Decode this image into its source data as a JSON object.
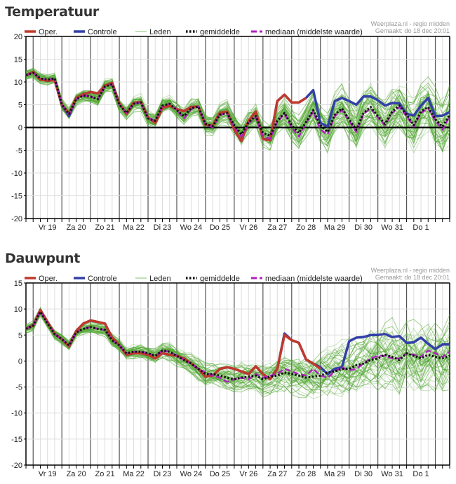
{
  "source": "Weerplaza.nl - regio midden",
  "made": "Gemaakt: do 18 dec 20:01",
  "legend": [
    {
      "key": "oper",
      "label": "Oper.",
      "color": "#c0392b"
    },
    {
      "key": "controle",
      "label": "Controle",
      "color": "#3340a8"
    },
    {
      "key": "leden",
      "label": "Leden",
      "color": "#4ea52f"
    },
    {
      "key": "gemiddelde",
      "label": "gemiddelde",
      "color": "#111111"
    },
    {
      "key": "mediaan",
      "label": "mediaan (middelste waarde)",
      "color": "#b020c0"
    }
  ],
  "chart_data": [
    {
      "type": "line",
      "title": "Temperatuur",
      "xlabel": "",
      "ylabel": "",
      "ylim": [
        -20,
        20
      ],
      "yticks": [
        20,
        15,
        10,
        5,
        0,
        -5,
        -10,
        -15,
        -20
      ],
      "x_step_hours": 6,
      "x_start": "do 18 18:00",
      "day_labels": [
        "Vr 19",
        "Za 20",
        "Zo 21",
        "Ma 22",
        "Di 23",
        "Wo 24",
        "Do 25",
        "Vr 26",
        "Za 27",
        "Zo 28",
        "Ma 29",
        "Di 30",
        "Wo 31",
        "Do 1"
      ],
      "zero_line": true,
      "grid": true,
      "series": [
        {
          "name": "Oper.",
          "key": "oper",
          "values": [
            11.5,
            12.2,
            10.5,
            10.3,
            10.4,
            5.0,
            3.0,
            6.5,
            7.3,
            7.8,
            7.5,
            9.2,
            9.8,
            5.2,
            3.0,
            5.4,
            5.6,
            2.2,
            1.0,
            4.3,
            4.8,
            4.0,
            3.6,
            4.5,
            4.6,
            0.6,
            0.4,
            3.2,
            3.5,
            -0.5,
            -3.0,
            1.5,
            3.5,
            -2.5,
            -2.8,
            5.8,
            7.2,
            5.5,
            5.5,
            6.5,
            null,
            null,
            null,
            null,
            null,
            null,
            null,
            null,
            null,
            null,
            null,
            null,
            null,
            null,
            null,
            null,
            null,
            null,
            null,
            null
          ]
        },
        {
          "name": "Controle",
          "key": "controle",
          "values": [
            11.5,
            12.2,
            10.5,
            10.3,
            10.4,
            5.0,
            2.5,
            6.5,
            7.3,
            7.8,
            7.5,
            9.2,
            9.8,
            5.2,
            3.0,
            5.4,
            5.6,
            2.2,
            1.0,
            4.3,
            4.8,
            4.0,
            3.6,
            4.5,
            4.6,
            0.6,
            0.4,
            3.2,
            3.5,
            -0.5,
            -3.0,
            1.5,
            3.5,
            -2.5,
            -2.8,
            5.8,
            7.2,
            5.5,
            5.5,
            6.5,
            8.2,
            1.0,
            0.2,
            5.8,
            6.5,
            5.8,
            5.0,
            6.8,
            6.8,
            6.0,
            4.8,
            5.4,
            5.3,
            3.0,
            2.6,
            4.8,
            6.5,
            2.5,
            2.6,
            3.4
          ]
        },
        {
          "name": "gemiddelde",
          "key": "gemiddelde",
          "values": [
            11.5,
            12.0,
            10.8,
            10.5,
            10.8,
            5.0,
            3.0,
            6.2,
            7.0,
            6.8,
            6.2,
            9.0,
            9.5,
            5.0,
            3.2,
            5.2,
            5.5,
            2.0,
            1.5,
            4.8,
            5.2,
            3.8,
            2.5,
            4.2,
            4.6,
            0.8,
            0.3,
            2.8,
            3.2,
            0.5,
            -1.5,
            1.2,
            2.5,
            -1.2,
            -1.8,
            1.5,
            3.2,
            0.5,
            -1.2,
            1.2,
            3.8,
            0.5,
            -1.0,
            2.8,
            4.2,
            1.8,
            -0.5,
            3.2,
            4.5,
            2.5,
            0.8,
            3.5,
            4.8,
            2.8,
            0.5,
            3.5,
            4.5,
            1.8,
            0.2,
            2.8
          ]
        },
        {
          "name": "mediaan",
          "key": "mediaan",
          "values": [
            11.5,
            12.0,
            10.8,
            10.5,
            10.8,
            5.0,
            3.0,
            6.2,
            7.0,
            6.8,
            6.2,
            9.0,
            9.5,
            5.0,
            3.2,
            5.2,
            5.5,
            2.0,
            1.5,
            4.8,
            5.2,
            3.8,
            2.0,
            4.0,
            4.6,
            0.8,
            0.0,
            2.8,
            3.0,
            0.2,
            -2.0,
            1.0,
            2.2,
            -1.8,
            -2.5,
            1.2,
            3.0,
            0.0,
            -2.0,
            1.0,
            3.5,
            -0.5,
            -1.5,
            2.5,
            3.8,
            1.5,
            -1.0,
            3.0,
            4.2,
            2.2,
            0.5,
            3.2,
            4.5,
            2.5,
            0.2,
            3.2,
            4.2,
            1.5,
            -0.5,
            2.5
          ]
        }
      ],
      "members": {
        "count": 50,
        "spread_start": 1.2,
        "spread_end": 7.0
      }
    },
    {
      "type": "line",
      "title": "Dauwpunt",
      "xlabel": "",
      "ylabel": "",
      "ylim": [
        -20,
        15
      ],
      "yticks": [
        15,
        10,
        5,
        0,
        -5,
        -10,
        -15,
        -20
      ],
      "x_step_hours": 6,
      "x_start": "do 18 18:00",
      "day_labels": [
        "Vr 19",
        "Za 20",
        "Zo 21",
        "Ma 22",
        "Di 23",
        "Wo 24",
        "Do 25",
        "Vr 26",
        "Za 27",
        "Zo 28",
        "Ma 29",
        "Di 30",
        "Wo 31",
        "Do 1"
      ],
      "zero_line": false,
      "grid": true,
      "series": [
        {
          "name": "Oper.",
          "key": "oper",
          "values": [
            6.2,
            6.8,
            9.8,
            7.5,
            5.2,
            4.2,
            2.8,
            5.8,
            7.2,
            7.8,
            7.5,
            7.2,
            4.5,
            3.0,
            1.2,
            1.5,
            1.5,
            1.2,
            0.5,
            1.5,
            1.2,
            1.0,
            0.5,
            -0.5,
            -1.5,
            -3.0,
            -2.8,
            -1.5,
            -1.2,
            -1.5,
            -2.0,
            -2.5,
            -1.0,
            -2.5,
            -3.5,
            -1.5,
            5.0,
            4.0,
            3.5,
            0.3,
            -0.5,
            -1.5,
            null,
            null,
            null,
            null,
            null,
            null,
            null,
            null,
            null,
            null,
            null,
            null,
            null,
            null,
            null,
            null,
            null,
            null
          ]
        },
        {
          "name": "Controle",
          "key": "controle",
          "values": [
            6.2,
            6.8,
            9.8,
            7.5,
            5.2,
            4.2,
            2.8,
            5.8,
            7.2,
            7.8,
            7.5,
            7.2,
            4.5,
            3.0,
            1.2,
            1.5,
            1.5,
            1.2,
            0.5,
            1.5,
            1.2,
            1.0,
            0.5,
            -0.5,
            -1.5,
            -3.0,
            -2.8,
            -1.5,
            -1.2,
            -1.5,
            -2.0,
            -2.5,
            -1.0,
            -2.5,
            -3.5,
            -1.5,
            5.3,
            4.0,
            3.5,
            0.3,
            -0.5,
            -1.2,
            -2.5,
            -1.5,
            -1.2,
            3.8,
            4.5,
            4.6,
            5.0,
            5.0,
            5.2,
            4.6,
            4.8,
            3.5,
            3.6,
            4.5,
            3.3,
            2.3,
            3.2,
            3.2
          ]
        },
        {
          "name": "gemiddelde",
          "key": "gemiddelde",
          "values": [
            6.2,
            6.8,
            9.5,
            7.2,
            5.2,
            4.2,
            3.0,
            5.5,
            6.2,
            6.5,
            6.2,
            6.0,
            4.0,
            3.0,
            1.5,
            1.8,
            1.8,
            1.5,
            1.0,
            2.0,
            1.8,
            1.0,
            0.2,
            -0.5,
            -1.5,
            -2.5,
            -2.5,
            -2.8,
            -3.2,
            -3.5,
            -3.2,
            -3.0,
            -2.8,
            -3.5,
            -3.0,
            -2.8,
            -2.2,
            -2.5,
            -2.8,
            -3.2,
            -3.0,
            -2.8,
            -2.2,
            -2.0,
            -1.5,
            -1.5,
            -0.8,
            -0.5,
            0.2,
            0.5,
            1.2,
            0.8,
            0.2,
            1.5,
            1.0,
            0.5,
            1.2,
            0.8,
            0.5,
            1.0
          ]
        },
        {
          "name": "mediaan",
          "key": "mediaan",
          "values": [
            6.2,
            6.8,
            9.5,
            7.2,
            5.2,
            4.2,
            3.0,
            5.5,
            6.2,
            6.5,
            6.2,
            6.0,
            4.0,
            3.0,
            1.5,
            1.8,
            1.8,
            1.5,
            1.0,
            2.0,
            1.8,
            1.0,
            0.2,
            -0.5,
            -1.5,
            -2.2,
            -2.8,
            -3.2,
            -4.0,
            -3.5,
            -3.2,
            -3.5,
            -2.5,
            -3.2,
            -2.8,
            -2.5,
            -1.5,
            -2.0,
            -2.5,
            -2.8,
            -1.5,
            -2.8,
            -3.2,
            -2.0,
            -1.2,
            -1.8,
            -1.5,
            -0.5,
            0.5,
            1.0,
            1.0,
            0.5,
            0.5,
            1.5,
            1.2,
            0.8,
            2.0,
            1.5,
            0.8,
            1.8
          ]
        }
      ],
      "members": {
        "count": 50,
        "spread_start": 1.0,
        "spread_end": 8.0
      }
    }
  ]
}
